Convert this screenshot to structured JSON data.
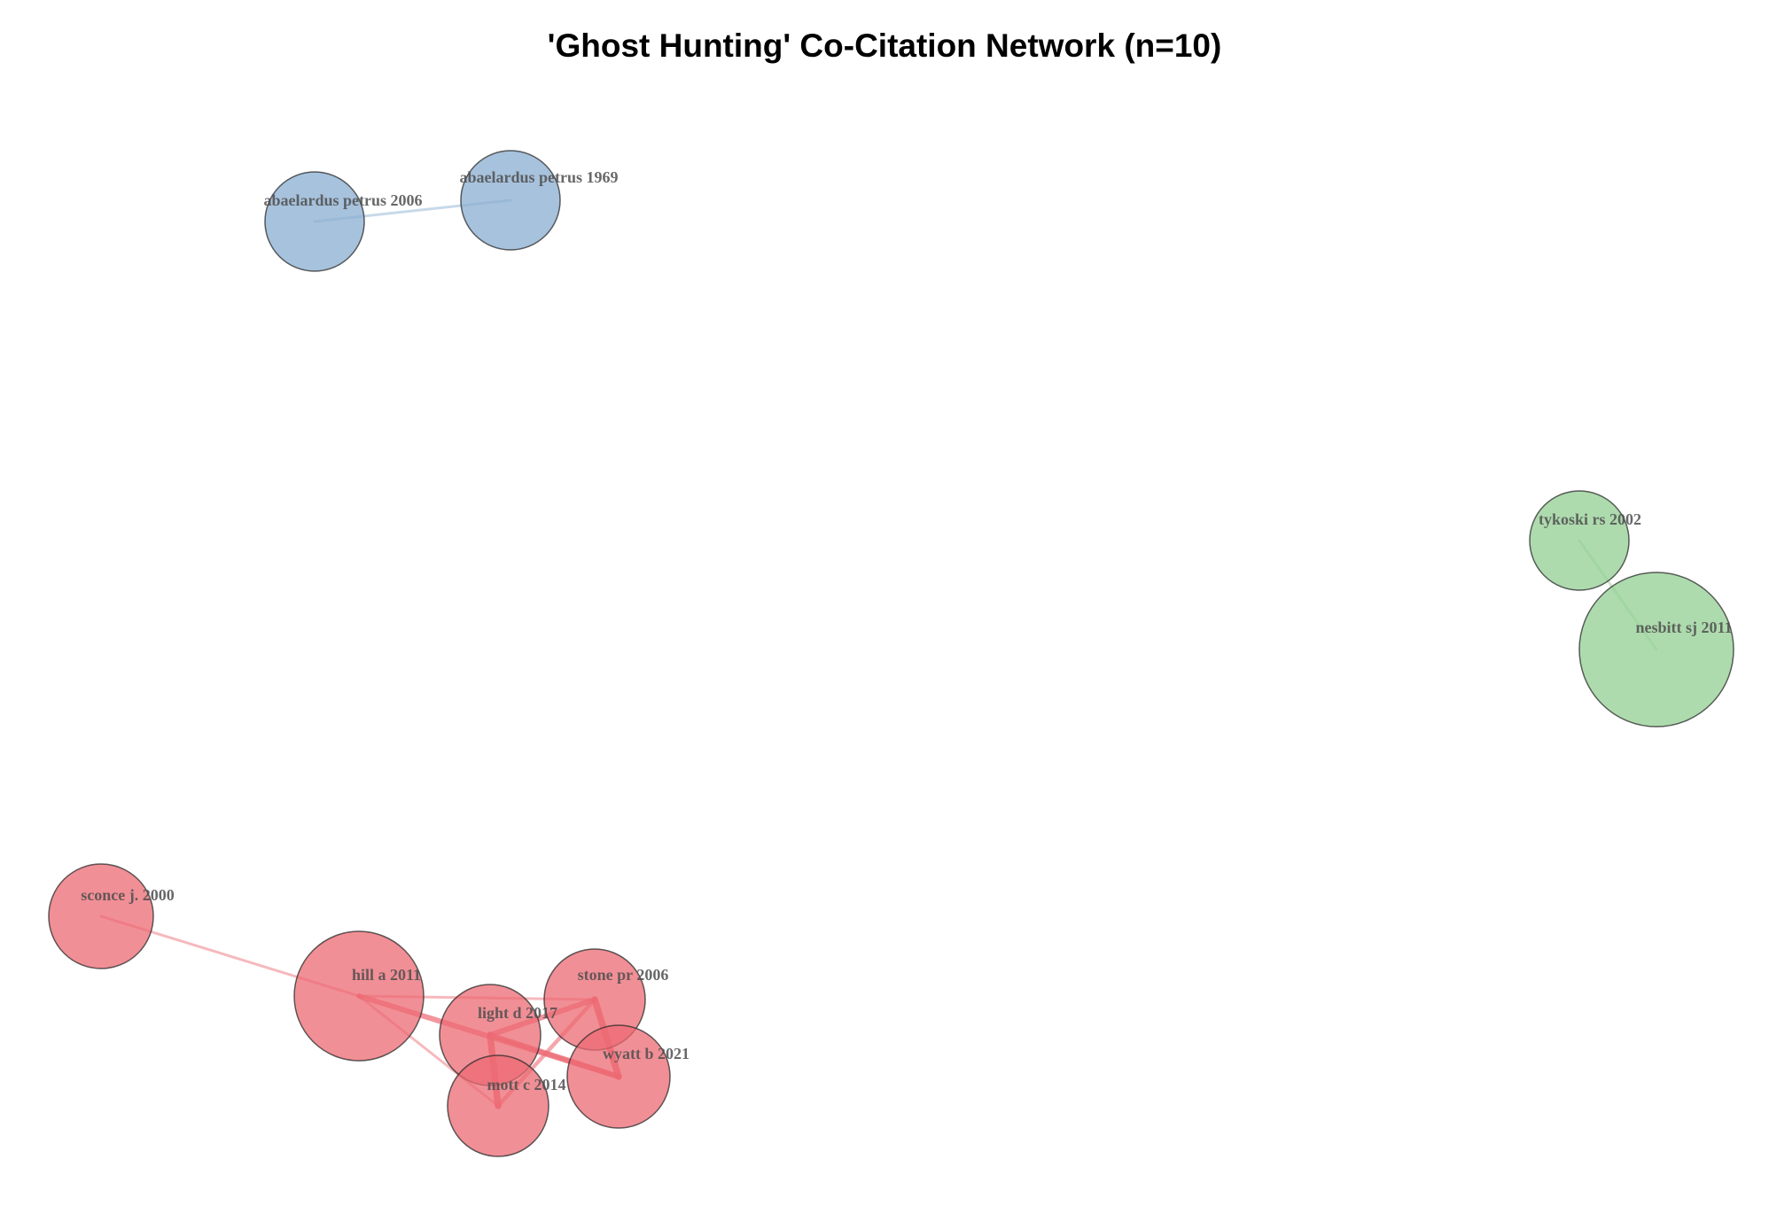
{
  "title": "'Ghost Hunting' Co-Citation Network (n=10)",
  "clusters": [
    {
      "id": "blue",
      "color": "#89aed0"
    },
    {
      "id": "green",
      "color": "#93cf93"
    },
    {
      "id": "red",
      "color": "#ec6a73"
    }
  ],
  "nodes": [
    {
      "id": "abaelardus petrus 2006",
      "label": "abaelardus petrus 2006",
      "cluster": "blue"
    },
    {
      "id": "abaelardus petrus 1969",
      "label": "abaelardus petrus 1969",
      "cluster": "blue"
    },
    {
      "id": "tykoski rs 2002",
      "label": "tykoski rs 2002",
      "cluster": "green"
    },
    {
      "id": "nesbitt sj 2011",
      "label": "nesbitt sj 2011",
      "cluster": "green"
    },
    {
      "id": "sconce j. 2000",
      "label": "sconce j. 2000",
      "cluster": "red"
    },
    {
      "id": "hill a 2011",
      "label": "hill a 2011",
      "cluster": "red"
    },
    {
      "id": "stone pr 2006",
      "label": "stone pr 2006",
      "cluster": "red"
    },
    {
      "id": "light d 2017",
      "label": "light d 2017",
      "cluster": "red"
    },
    {
      "id": "wyatt b 2021",
      "label": "wyatt b 2021",
      "cluster": "red"
    },
    {
      "id": "mott c 2014",
      "label": "mott c 2014",
      "cluster": "red"
    }
  ],
  "edges": [
    {
      "source": "abaelardus petrus 2006",
      "target": "abaelardus petrus 1969",
      "weight": 1
    },
    {
      "source": "tykoski rs 2002",
      "target": "nesbitt sj 2011",
      "weight": 1
    },
    {
      "source": "sconce j. 2000",
      "target": "hill a 2011",
      "weight": 1
    },
    {
      "source": "hill a 2011",
      "target": "stone pr 2006",
      "weight": 1
    },
    {
      "source": "hill a 2011",
      "target": "wyatt b 2021",
      "weight": 3
    },
    {
      "source": "hill a 2011",
      "target": "mott c 2014",
      "weight": 1
    },
    {
      "source": "light d 2017",
      "target": "stone pr 2006",
      "weight": 3
    },
    {
      "source": "light d 2017",
      "target": "mott c 2014",
      "weight": 4
    },
    {
      "source": "stone pr 2006",
      "target": "wyatt b 2021",
      "weight": 4
    },
    {
      "source": "stone pr 2006",
      "target": "mott c 2014",
      "weight": 2
    },
    {
      "source": "light d 2017",
      "target": "wyatt b 2021",
      "weight": 3
    }
  ]
}
